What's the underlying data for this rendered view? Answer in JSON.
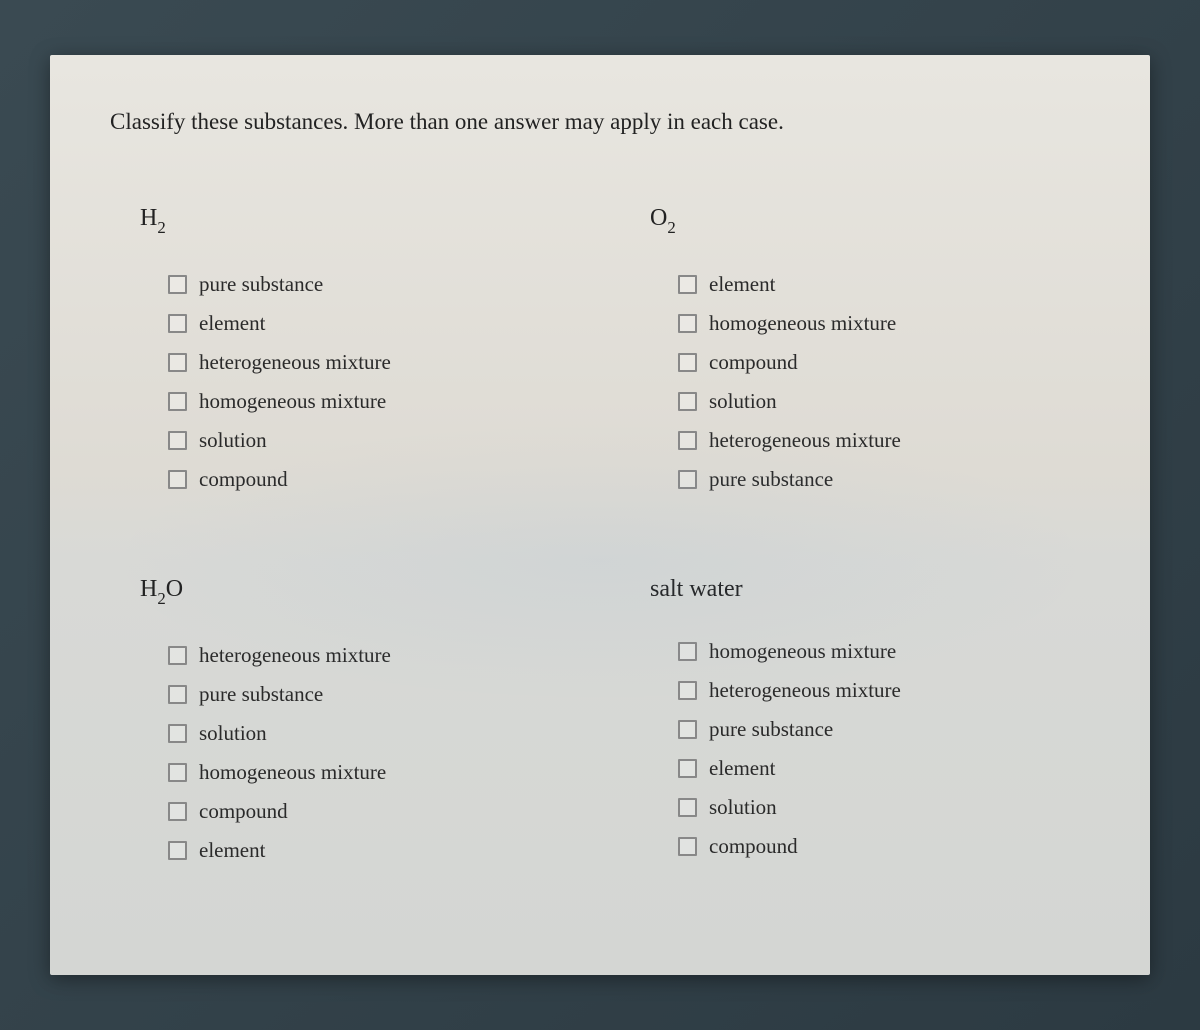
{
  "instruction": "Classify these substances. More than one answer may apply in each case.",
  "blocks": [
    {
      "title_html": "H<sub class='sub'>2</sub>",
      "title_plain": "H2",
      "options": [
        "pure substance",
        "element",
        "heterogeneous mixture",
        "homogeneous mixture",
        "solution",
        "compound"
      ]
    },
    {
      "title_html": "O<sub class='sub'>2</sub>",
      "title_plain": "O2",
      "options": [
        "element",
        "homogeneous mixture",
        "compound",
        "solution",
        "heterogeneous mixture",
        "pure substance"
      ]
    },
    {
      "title_html": "H<sub class='sub'>2</sub>O",
      "title_plain": "H2O",
      "options": [
        "heterogeneous mixture",
        "pure substance",
        "solution",
        "homogeneous mixture",
        "compound",
        "element"
      ]
    },
    {
      "title_html": "salt water",
      "title_plain": "salt water",
      "options": [
        "homogeneous mixture",
        "heterogeneous mixture",
        "pure substance",
        "element",
        "solution",
        "compound"
      ]
    }
  ],
  "style": {
    "page_bg_top": "#e8e6e0",
    "page_bg_bottom": "#d4d6d3",
    "outer_bg": "#2c3a42",
    "text_color": "#2a2a2a",
    "checkbox_border": "#888888",
    "instruction_fontsize": 23,
    "title_fontsize": 24,
    "option_fontsize": 21,
    "checkbox_size": 19,
    "font_family": "Georgia, Times New Roman, serif"
  }
}
